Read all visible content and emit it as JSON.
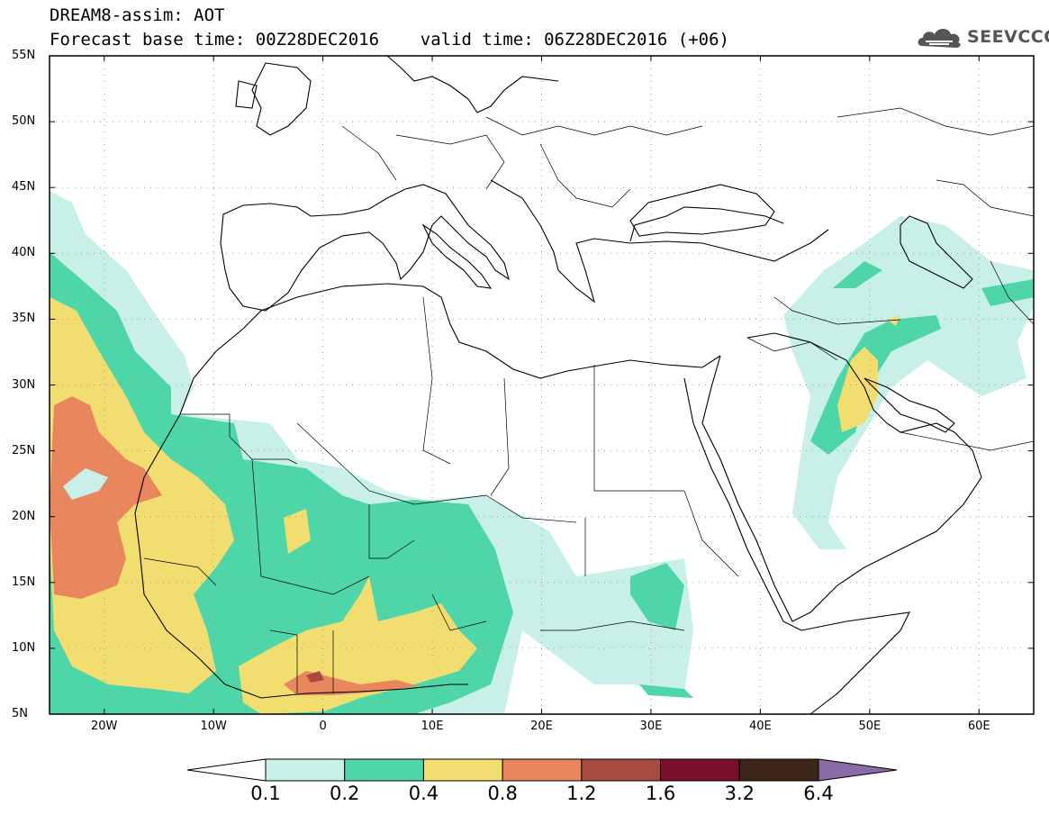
{
  "header": {
    "line1": "DREAM8-assim: AOT",
    "line2": "Forecast base time: 00Z28DEC2016    valid time: 06Z28DEC2016 (+06)"
  },
  "logo": {
    "text": "SEEVCCC",
    "icon": "cloud-icon"
  },
  "map": {
    "lat_range": [
      5,
      55
    ],
    "lon_range": [
      -25,
      65
    ],
    "lat_ticks": [
      "55N",
      "50N",
      "45N",
      "40N",
      "35N",
      "30N",
      "25N",
      "20N",
      "15N",
      "10N",
      "5N"
    ],
    "lon_ticks": [
      "20W",
      "10W",
      "0",
      "10E",
      "20E",
      "30E",
      "40E",
      "50E",
      "60E"
    ],
    "grid": true
  },
  "colorbar": {
    "labels": [
      "0.1",
      "0.2",
      "0.4",
      "0.8",
      "1.2",
      "1.6",
      "3.2",
      "6.4"
    ],
    "colors": [
      "#ffffff",
      "#c8f0e8",
      "#4ed6a8",
      "#f2dd70",
      "#e8865e",
      "#a84b3e",
      "#7a0f2c",
      "#3b2618",
      "#8b6aa8"
    ]
  }
}
